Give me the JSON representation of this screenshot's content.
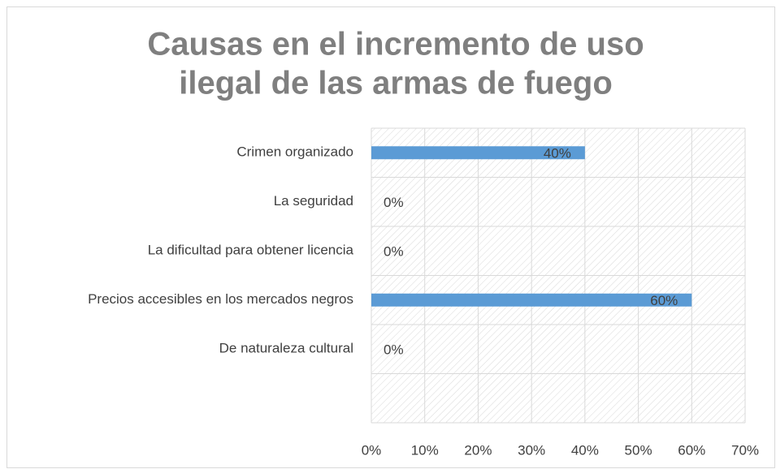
{
  "chart_data": {
    "type": "bar",
    "orientation": "horizontal",
    "title": [
      "Causas en el incremento de uso",
      "ilegal de las armas de fuego"
    ],
    "categories": [
      "Crimen organizado",
      "La seguridad",
      "La dificultad para obtener licencia",
      "Precios accesibles en los mercados negros",
      "De naturaleza cultural",
      null
    ],
    "values": [
      40,
      0,
      0,
      60,
      0,
      null
    ],
    "value_labels": [
      "40%",
      "0%",
      "0%",
      "60%",
      "0%",
      null
    ],
    "color": "#5b9bd5",
    "xlim": [
      0,
      70
    ],
    "xticks": [
      {
        "value": 0,
        "label": "0%"
      },
      {
        "value": 10,
        "label": "10%"
      },
      {
        "value": 20,
        "label": "20%"
      },
      {
        "value": 30,
        "label": "30%"
      },
      {
        "value": 40,
        "label": "40%"
      },
      {
        "value": 50,
        "label": "50%"
      },
      {
        "value": 60,
        "label": "60%"
      },
      {
        "value": 70,
        "label": "70%"
      }
    ],
    "grid": true
  }
}
